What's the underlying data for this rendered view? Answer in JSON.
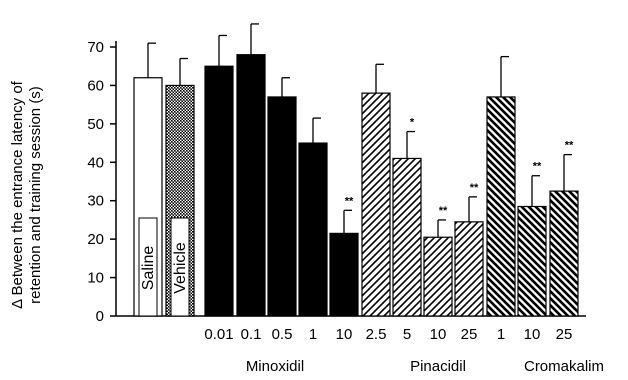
{
  "chart_data": {
    "type": "bar",
    "ylabel_line1": "Δ Between the entrance latency of",
    "ylabel_line2": "retention and training session (s)",
    "ylim": [
      0,
      70
    ],
    "yticks": [
      0,
      10,
      20,
      30,
      40,
      50,
      60,
      70
    ],
    "bars": [
      {
        "label": "",
        "inbar_label": "Saline",
        "group": "control",
        "value": 62,
        "err": 9,
        "sig": "",
        "fill": "white"
      },
      {
        "label": "",
        "inbar_label": "Vehicle",
        "group": "control",
        "value": 60,
        "err": 7,
        "sig": "",
        "fill": "checker"
      },
      {
        "label": "0.01",
        "inbar_label": "",
        "group": "Minoxidil",
        "value": 65,
        "err": 8,
        "sig": "",
        "fill": "solid"
      },
      {
        "label": "0.1",
        "inbar_label": "",
        "group": "Minoxidil",
        "value": 68,
        "err": 8,
        "sig": "",
        "fill": "solid"
      },
      {
        "label": "0.5",
        "inbar_label": "",
        "group": "Minoxidil",
        "value": 57,
        "err": 5,
        "sig": "",
        "fill": "solid"
      },
      {
        "label": "1",
        "inbar_label": "",
        "group": "Minoxidil",
        "value": 45,
        "err": 6.5,
        "sig": "",
        "fill": "solid"
      },
      {
        "label": "10",
        "inbar_label": "",
        "group": "Minoxidil",
        "value": 21.5,
        "err": 6,
        "sig": "**",
        "fill": "solid"
      },
      {
        "label": "2.5",
        "inbar_label": "",
        "group": "Pinacidil",
        "value": 58,
        "err": 7.5,
        "sig": "",
        "fill": "hatch-fwd"
      },
      {
        "label": "5",
        "inbar_label": "",
        "group": "Pinacidil",
        "value": 41,
        "err": 7,
        "sig": "*",
        "fill": "hatch-fwd"
      },
      {
        "label": "10",
        "inbar_label": "",
        "group": "Pinacidil",
        "value": 20.5,
        "err": 4.5,
        "sig": "**",
        "fill": "hatch-fwd"
      },
      {
        "label": "25",
        "inbar_label": "",
        "group": "Pinacidil",
        "value": 24.5,
        "err": 6.5,
        "sig": "**",
        "fill": "hatch-fwd"
      },
      {
        "label": "1",
        "inbar_label": "",
        "group": "Cromakalim",
        "value": 57,
        "err": 10.5,
        "sig": "",
        "fill": "hatch-back"
      },
      {
        "label": "10",
        "inbar_label": "",
        "group": "Cromakalim",
        "value": 28.5,
        "err": 8,
        "sig": "**",
        "fill": "hatch-back"
      },
      {
        "label": "25",
        "inbar_label": "",
        "group": "Cromakalim",
        "value": 32.5,
        "err": 9.5,
        "sig": "**",
        "fill": "hatch-back"
      }
    ],
    "group_labels": [
      "Minoxidil",
      "Pinacidil",
      "Cromakalim"
    ]
  }
}
